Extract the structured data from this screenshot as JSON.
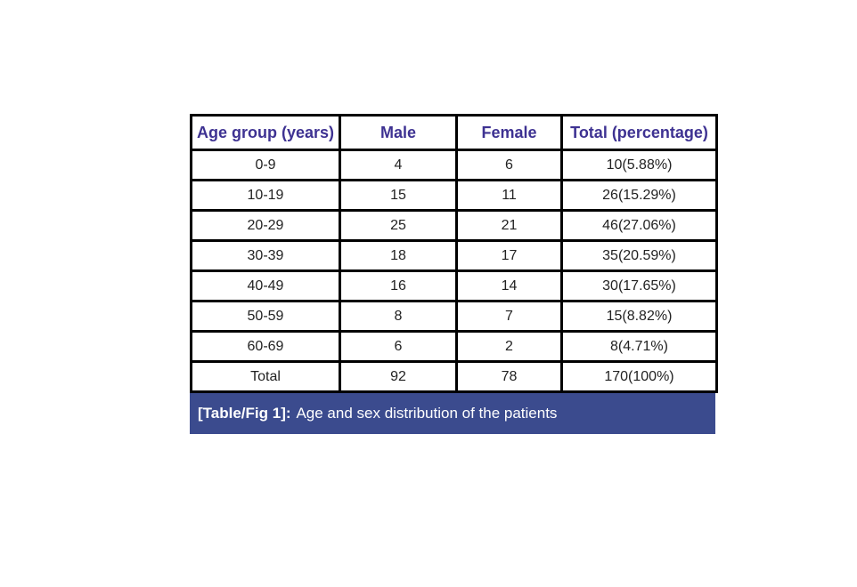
{
  "chart_data": {
    "type": "table",
    "title": "[Table/Fig 1]: Age and sex distribution of the patients",
    "columns": [
      "Age group (years)",
      "Male",
      "Female",
      "Total (percentage)"
    ],
    "rows": [
      [
        "0-9",
        "4",
        "6",
        "10(5.88%)"
      ],
      [
        "10-19",
        "15",
        "11",
        "26(15.29%)"
      ],
      [
        "20-29",
        "25",
        "21",
        "46(27.06%)"
      ],
      [
        "30-39",
        "18",
        "17",
        "35(20.59%)"
      ],
      [
        "40-49",
        "16",
        "14",
        "30(17.65%)"
      ],
      [
        "50-59",
        "8",
        "7",
        "15(8.82%)"
      ],
      [
        "60-69",
        "6",
        "2",
        "8(4.71%)"
      ],
      [
        "Total",
        "92",
        "78",
        "170(100%)"
      ]
    ],
    "categories": [
      "0-9",
      "10-19",
      "20-29",
      "30-39",
      "40-49",
      "50-59",
      "60-69"
    ],
    "series": [
      {
        "name": "Male",
        "values": [
          4,
          15,
          25,
          18,
          16,
          8,
          6
        ],
        "total": 92
      },
      {
        "name": "Female",
        "values": [
          6,
          11,
          21,
          17,
          14,
          7,
          2
        ],
        "total": 78
      },
      {
        "name": "Total",
        "values": [
          10,
          26,
          46,
          35,
          30,
          15,
          8
        ],
        "total": 170
      },
      {
        "name": "Total percentage",
        "values": [
          5.88,
          15.29,
          27.06,
          20.59,
          17.65,
          8.82,
          4.71
        ],
        "total": 100
      }
    ]
  },
  "caption": {
    "label": "[Table/Fig 1]:",
    "text": "Age and sex distribution of the patients"
  },
  "colors": {
    "header_text": "#3e3292",
    "caption_background": "#3b4b8e",
    "caption_text": "#ffffff",
    "border": "#000000",
    "cell_text": "#222222",
    "page_background": "#ffffff"
  }
}
